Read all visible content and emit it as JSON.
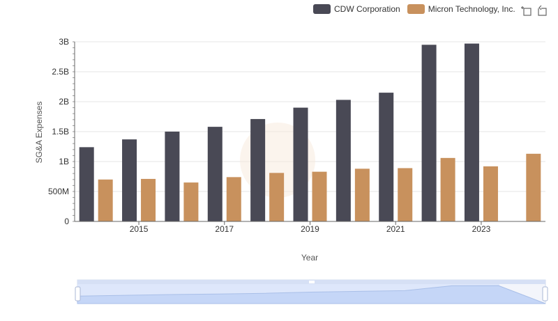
{
  "legend": [
    {
      "name": "CDW Corporation",
      "color": "#494955"
    },
    {
      "name": "Micron Technology, Inc.",
      "color": "#c8915d"
    }
  ],
  "toolbar": {
    "icons": [
      "zoom-icon",
      "restore-icon"
    ]
  },
  "chart_data": {
    "type": "bar",
    "x": [
      2014,
      2015,
      2016,
      2017,
      2018,
      2019,
      2020,
      2021,
      2022,
      2023,
      2024
    ],
    "xticks": [
      "2015",
      "2017",
      "2019",
      "2021",
      "2023"
    ],
    "yticks": [
      "0",
      "500M",
      "1B",
      "1.5B",
      "2B",
      "2.5B",
      "3B"
    ],
    "ylim": [
      0,
      3000000000
    ],
    "ylabel": "SG&A Expenses",
    "xlabel": "Year",
    "grid": true,
    "legend_position": "top-right",
    "series": [
      {
        "name": "CDW Corporation",
        "color": "#494955",
        "values": [
          1240000000,
          1370000000,
          1500000000,
          1580000000,
          1710000000,
          1900000000,
          2030000000,
          2150000000,
          2950000000,
          2970000000,
          null
        ]
      },
      {
        "name": "Micron Technology, Inc.",
        "color": "#c8915d",
        "values": [
          700000000,
          710000000,
          650000000,
          740000000,
          810000000,
          830000000,
          880000000,
          890000000,
          1060000000,
          920000000,
          1130000000
        ]
      }
    ]
  }
}
